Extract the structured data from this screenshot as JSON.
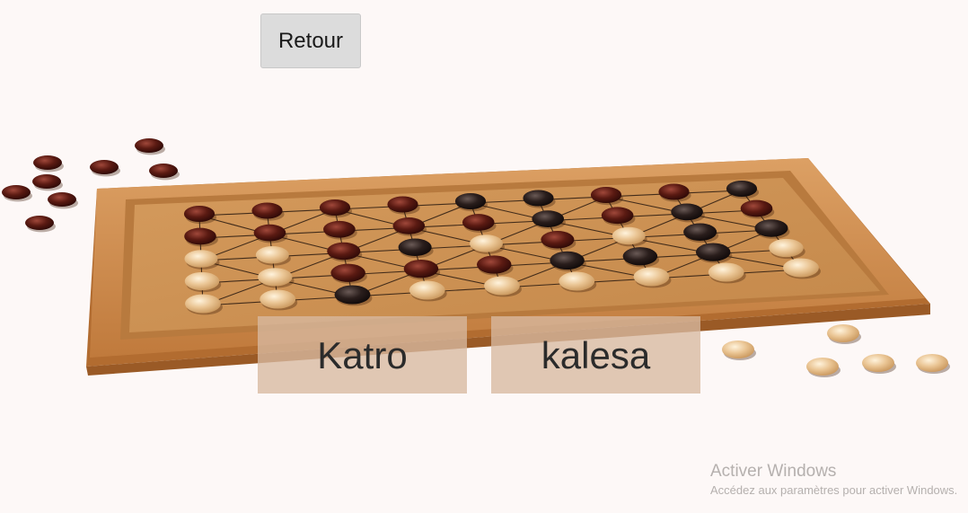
{
  "header": {
    "back_label": "Retour"
  },
  "game_choices": [
    {
      "label": "Katro"
    },
    {
      "label": "kalesa"
    }
  ],
  "watermark": {
    "title": "Activer Windows",
    "subtitle": "Accédez aux paramètres pour activer Windows."
  },
  "colors": {
    "background": "#fdf8f7",
    "board_wood": "#c98a45",
    "dark_piece": "#5a1a12",
    "light_piece": "#e8c08a",
    "choice_button": "#d7b8a0"
  },
  "icons": {
    "board": "wooden-game-board-image"
  }
}
